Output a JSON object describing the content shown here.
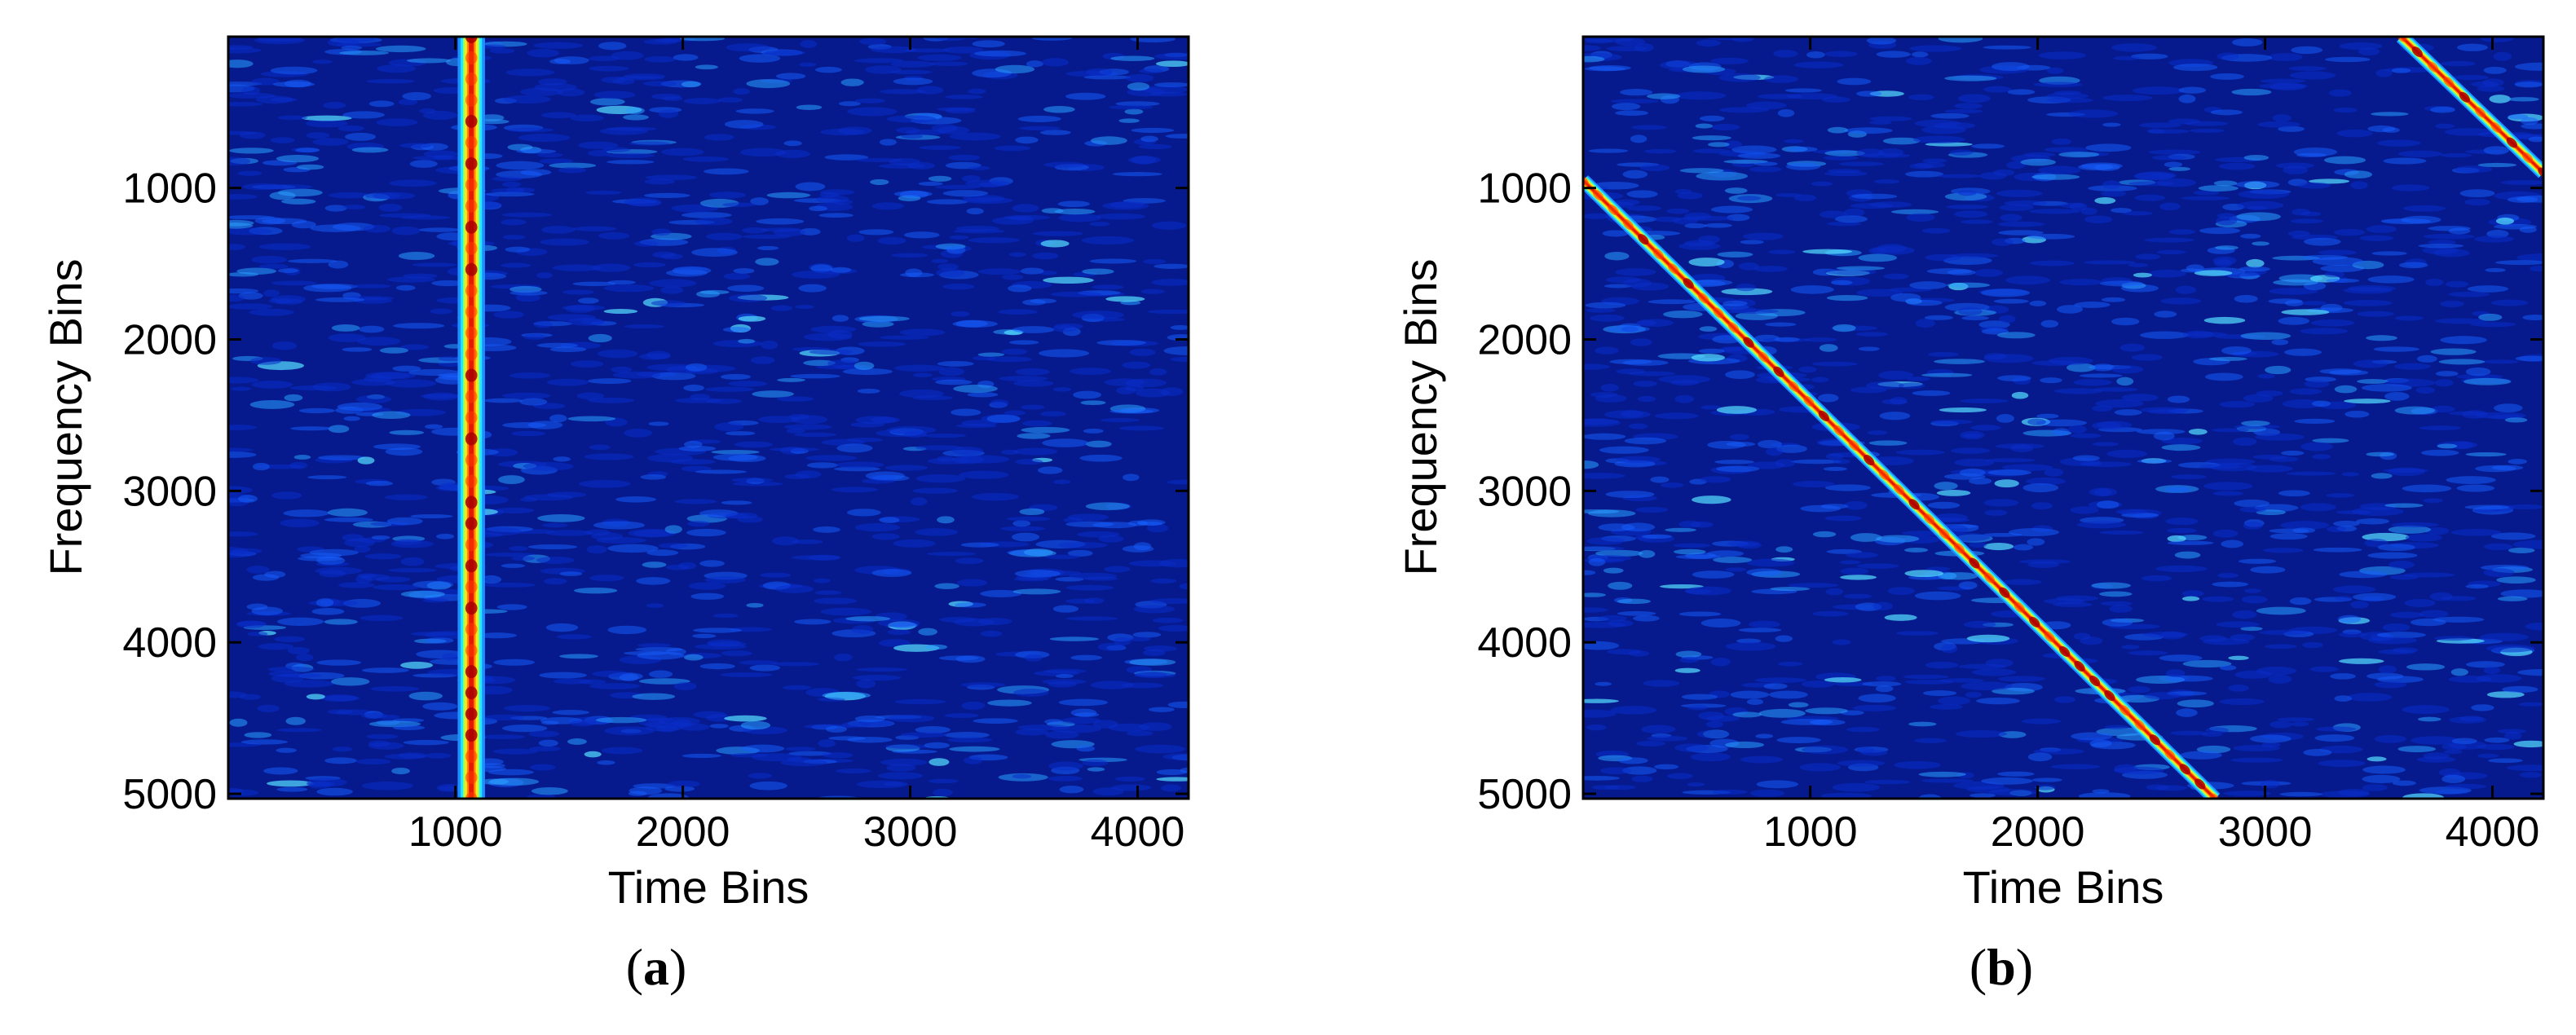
{
  "chart_data": [
    {
      "type": "heatmap",
      "panel_label": "a",
      "xlabel": "Time Bins",
      "ylabel": "Frequency Bins",
      "xlim": [
        1,
        4224
      ],
      "ylim": [
        1,
        5032
      ],
      "y_reversed": true,
      "xticks": [
        1000,
        2000,
        3000,
        4000
      ],
      "yticks": [
        1000,
        2000,
        3000,
        4000,
        5000
      ],
      "colormap": "jet",
      "background_color": "#061a8e",
      "ridge": {
        "shape": "vertical line",
        "x": 1070,
        "y_start": 1,
        "y_end": 5032,
        "width_bins": 120
      }
    },
    {
      "type": "heatmap",
      "panel_label": "b",
      "xlabel": "Time Bins",
      "ylabel": "Frequency Bins",
      "xlim": [
        1,
        4224
      ],
      "ylim": [
        1,
        5032
      ],
      "y_reversed": true,
      "xticks": [
        1000,
        2000,
        3000,
        4000
      ],
      "yticks": [
        1000,
        2000,
        3000,
        4000,
        5000
      ],
      "colormap": "jet",
      "background_color": "#061a8e",
      "ridges": [
        {
          "shape": "diagonal line",
          "x_start": 1,
          "y_start": 950,
          "x_end": 2780,
          "y_end": 5032,
          "width_bins": 90
        },
        {
          "shape": "diagonal line",
          "x_start": 3600,
          "y_start": 1,
          "x_end": 4224,
          "y_end": 900,
          "width_bins": 90
        }
      ]
    }
  ],
  "captions": [
    {
      "open": "(",
      "letter": "a",
      "close": ")"
    },
    {
      "open": "(",
      "letter": "b",
      "close": ")"
    }
  ]
}
